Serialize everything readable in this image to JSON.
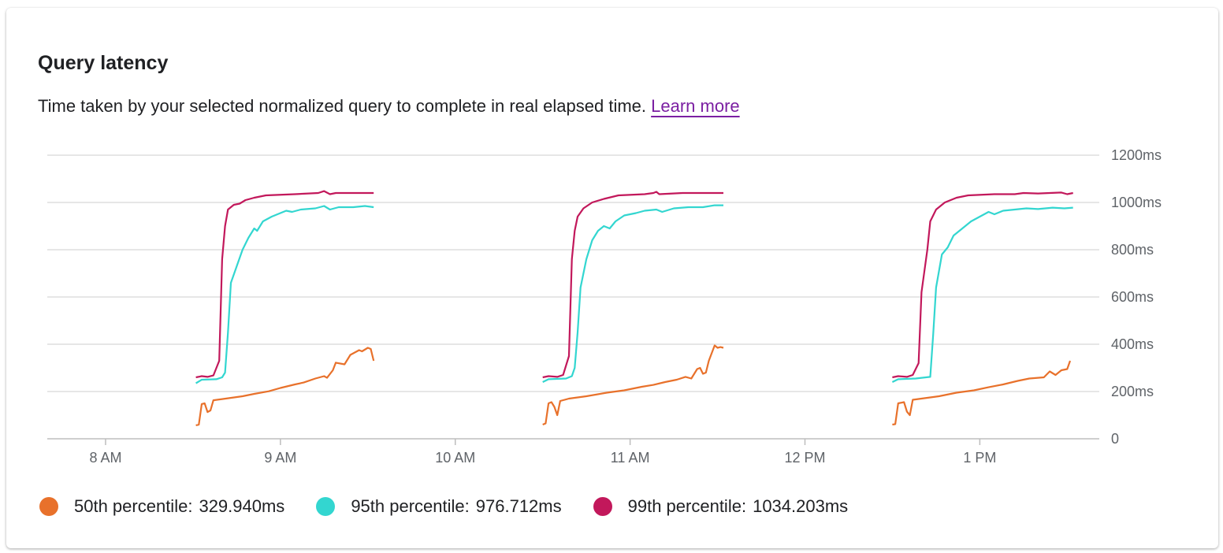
{
  "title": "Query latency",
  "description": "Time taken by your selected normalized query to complete in real elapsed time.",
  "learn_more": "Learn more",
  "chart_data": {
    "type": "line",
    "x_range": [
      "07:40",
      "13:41"
    ],
    "ylim": [
      0,
      1200
    ],
    "y_ticks": [
      "0",
      "200ms",
      "400ms",
      "600ms",
      "800ms",
      "1000ms",
      "1200ms"
    ],
    "y_tick_values": [
      0,
      200,
      400,
      600,
      800,
      1000,
      1200
    ],
    "x_ticks": [
      "8 AM",
      "9 AM",
      "10 AM",
      "11 AM",
      "12 PM",
      "1 PM"
    ],
    "x_tick_values": [
      "08:00",
      "09:00",
      "10:00",
      "11:00",
      "12:00",
      "13:00"
    ],
    "grid": true,
    "legend_position": "bottom-left",
    "series": [
      {
        "name": "50th percentile",
        "value_label": "329.940ms",
        "color": "#e8712b",
        "segments": [
          [
            [
              "08:31",
              57
            ],
            [
              "08:32",
              60
            ],
            [
              "08:33",
              147
            ],
            [
              "08:34",
              150
            ],
            [
              "08:35",
              113
            ],
            [
              "08:36",
              120
            ],
            [
              "08:37",
              163
            ],
            [
              "08:40",
              168
            ],
            [
              "08:47",
              180
            ],
            [
              "08:51",
              190
            ],
            [
              "08:56",
              201
            ],
            [
              "09:00",
              215
            ],
            [
              "09:05",
              230
            ],
            [
              "09:08",
              238
            ],
            [
              "09:12",
              255
            ],
            [
              "09:15",
              265
            ],
            [
              "09:16",
              258
            ],
            [
              "09:18",
              290
            ],
            [
              "09:19",
              322
            ],
            [
              "09:22",
              315
            ],
            [
              "09:24",
              355
            ],
            [
              "09:27",
              375
            ],
            [
              "09:28",
              370
            ],
            [
              "09:30",
              385
            ],
            [
              "09:31",
              380
            ],
            [
              "09:32",
              330
            ]
          ],
          [
            [
              "10:30",
              60
            ],
            [
              "10:31",
              65
            ],
            [
              "10:32",
              150
            ],
            [
              "10:33",
              155
            ],
            [
              "10:34",
              135
            ],
            [
              "10:35",
              100
            ],
            [
              "10:36",
              160
            ],
            [
              "10:39",
              170
            ],
            [
              "10:45",
              180
            ],
            [
              "10:52",
              195
            ],
            [
              "10:58",
              205
            ],
            [
              "11:04",
              220
            ],
            [
              "11:08",
              228
            ],
            [
              "11:12",
              240
            ],
            [
              "11:16",
              250
            ],
            [
              "11:19",
              262
            ],
            [
              "11:21",
              255
            ],
            [
              "11:23",
              295
            ],
            [
              "11:24",
              300
            ],
            [
              "11:25",
              275
            ],
            [
              "11:26",
              280
            ],
            [
              "11:27",
              330
            ],
            [
              "11:29",
              395
            ],
            [
              "11:30",
              385
            ],
            [
              "11:31",
              388
            ],
            [
              "11:32",
              385
            ]
          ],
          [
            [
              "12:30",
              60
            ],
            [
              "12:31",
              62
            ],
            [
              "12:32",
              150
            ],
            [
              "12:34",
              155
            ],
            [
              "12:35",
              115
            ],
            [
              "12:36",
              100
            ],
            [
              "12:37",
              165
            ],
            [
              "12:40",
              170
            ],
            [
              "12:46",
              180
            ],
            [
              "12:52",
              195
            ],
            [
              "12:58",
              205
            ],
            [
              "13:03",
              218
            ],
            [
              "13:08",
              230
            ],
            [
              "13:13",
              245
            ],
            [
              "13:17",
              255
            ],
            [
              "13:22",
              260
            ],
            [
              "13:24",
              285
            ],
            [
              "13:26",
              270
            ],
            [
              "13:28",
              290
            ],
            [
              "13:30",
              295
            ],
            [
              "13:31",
              330
            ]
          ]
        ]
      },
      {
        "name": "95th percentile",
        "value_label": "976.712ms",
        "color": "#33d6d0",
        "segments": [
          [
            [
              "08:31",
              235
            ],
            [
              "08:33",
              250
            ],
            [
              "08:38",
              252
            ],
            [
              "08:40",
              260
            ],
            [
              "08:41",
              280
            ],
            [
              "08:42",
              450
            ],
            [
              "08:43",
              660
            ],
            [
              "08:45",
              730
            ],
            [
              "08:47",
              800
            ],
            [
              "08:49",
              850
            ],
            [
              "08:51",
              890
            ],
            [
              "08:52",
              880
            ],
            [
              "08:54",
              920
            ],
            [
              "08:57",
              940
            ],
            [
              "09:00",
              955
            ],
            [
              "09:02",
              965
            ],
            [
              "09:04",
              960
            ],
            [
              "09:07",
              970
            ],
            [
              "09:12",
              975
            ],
            [
              "09:15",
              985
            ],
            [
              "09:17",
              970
            ],
            [
              "09:20",
              980
            ],
            [
              "09:25",
              980
            ],
            [
              "09:29",
              985
            ],
            [
              "09:32",
              980
            ]
          ],
          [
            [
              "10:30",
              240
            ],
            [
              "10:32",
              252
            ],
            [
              "10:38",
              255
            ],
            [
              "10:40",
              265
            ],
            [
              "10:41",
              300
            ],
            [
              "10:42",
              450
            ],
            [
              "10:43",
              640
            ],
            [
              "10:45",
              760
            ],
            [
              "10:47",
              840
            ],
            [
              "10:49",
              880
            ],
            [
              "10:51",
              900
            ],
            [
              "10:53",
              890
            ],
            [
              "10:55",
              920
            ],
            [
              "10:58",
              945
            ],
            [
              "11:02",
              955
            ],
            [
              "11:05",
              965
            ],
            [
              "11:09",
              970
            ],
            [
              "11:11",
              960
            ],
            [
              "11:15",
              975
            ],
            [
              "11:20",
              980
            ],
            [
              "11:25",
              980
            ],
            [
              "11:29",
              988
            ],
            [
              "11:32",
              988
            ]
          ],
          [
            [
              "12:30",
              240
            ],
            [
              "12:32",
              252
            ],
            [
              "12:38",
              255
            ],
            [
              "12:43",
              262
            ],
            [
              "12:44",
              440
            ],
            [
              "12:45",
              640
            ],
            [
              "12:47",
              780
            ],
            [
              "12:49",
              810
            ],
            [
              "12:51",
              860
            ],
            [
              "12:54",
              890
            ],
            [
              "12:57",
              920
            ],
            [
              "13:00",
              940
            ],
            [
              "13:03",
              960
            ],
            [
              "13:05",
              950
            ],
            [
              "13:08",
              965
            ],
            [
              "13:12",
              970
            ],
            [
              "13:16",
              975
            ],
            [
              "13:20",
              972
            ],
            [
              "13:25",
              978
            ],
            [
              "13:29",
              975
            ],
            [
              "13:32",
              978
            ]
          ]
        ]
      },
      {
        "name": "99th percentile",
        "value_label": "1034.203ms",
        "color": "#c2185b",
        "segments": [
          [
            [
              "08:31",
              260
            ],
            [
              "08:33",
              265
            ],
            [
              "08:35",
              262
            ],
            [
              "08:37",
              268
            ],
            [
              "08:39",
              330
            ],
            [
              "08:40",
              760
            ],
            [
              "08:41",
              900
            ],
            [
              "08:42",
              970
            ],
            [
              "08:44",
              990
            ],
            [
              "08:46",
              995
            ],
            [
              "08:48",
              1010
            ],
            [
              "08:51",
              1020
            ],
            [
              "08:55",
              1030
            ],
            [
              "09:05",
              1035
            ],
            [
              "09:13",
              1040
            ],
            [
              "09:15",
              1048
            ],
            [
              "09:17",
              1035
            ],
            [
              "09:19",
              1040
            ],
            [
              "09:25",
              1040
            ],
            [
              "09:32",
              1040
            ]
          ],
          [
            [
              "10:30",
              260
            ],
            [
              "10:32",
              265
            ],
            [
              "10:35",
              262
            ],
            [
              "10:37",
              270
            ],
            [
              "10:39",
              350
            ],
            [
              "10:40",
              760
            ],
            [
              "10:41",
              880
            ],
            [
              "10:42",
              940
            ],
            [
              "10:44",
              975
            ],
            [
              "10:47",
              1000
            ],
            [
              "10:51",
              1015
            ],
            [
              "10:56",
              1030
            ],
            [
              "11:05",
              1035
            ],
            [
              "11:08",
              1040
            ],
            [
              "11:09",
              1045
            ],
            [
              "11:10",
              1035
            ],
            [
              "11:18",
              1040
            ],
            [
              "11:32",
              1040
            ]
          ],
          [
            [
              "12:30",
              260
            ],
            [
              "12:32",
              265
            ],
            [
              "12:35",
              262
            ],
            [
              "12:37",
              270
            ],
            [
              "12:39",
              320
            ],
            [
              "12:40",
              620
            ],
            [
              "12:42",
              800
            ],
            [
              "12:43",
              920
            ],
            [
              "12:45",
              970
            ],
            [
              "12:48",
              1000
            ],
            [
              "12:52",
              1020
            ],
            [
              "12:56",
              1030
            ],
            [
              "13:05",
              1035
            ],
            [
              "13:12",
              1035
            ],
            [
              "13:15",
              1040
            ],
            [
              "13:20",
              1038
            ],
            [
              "13:28",
              1042
            ],
            [
              "13:30",
              1035
            ],
            [
              "13:32",
              1040
            ]
          ]
        ]
      }
    ]
  }
}
